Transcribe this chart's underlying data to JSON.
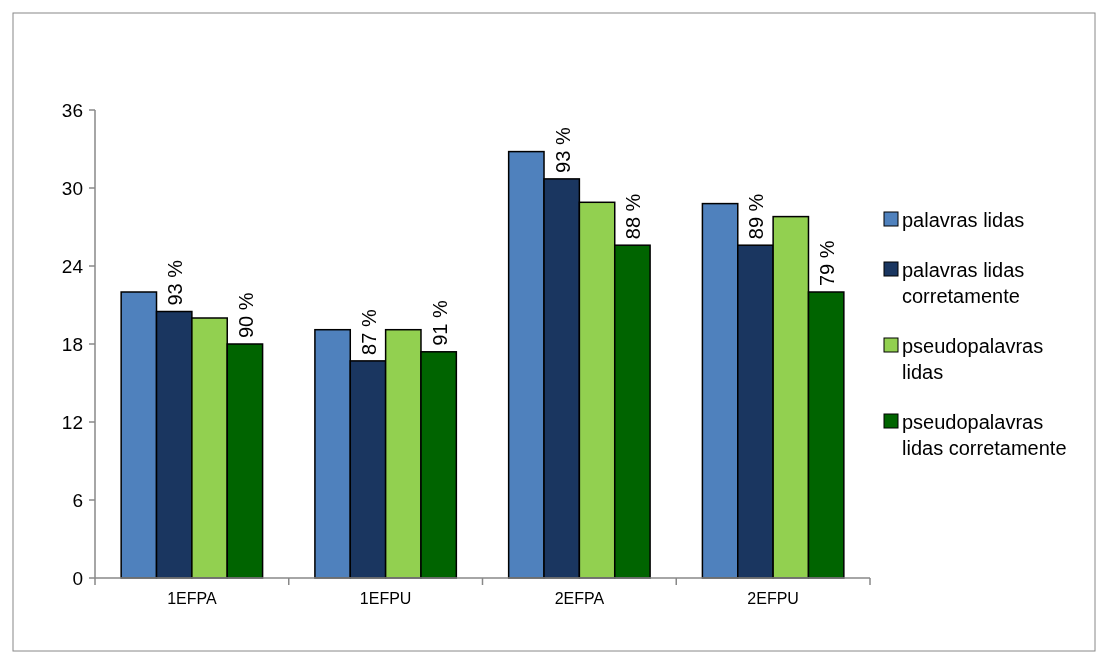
{
  "chart_data": {
    "type": "bar",
    "categories": [
      "1EFPA",
      "1EFPU",
      "2EFPA",
      "2EFPU"
    ],
    "series": [
      {
        "name": "palavras lidas",
        "color": "#4f81bd",
        "values": [
          22.0,
          19.1,
          32.8,
          28.8
        ]
      },
      {
        "name": "palavras lidas corretamente",
        "color": "#1a3660",
        "values": [
          20.5,
          16.7,
          30.7,
          25.6
        ]
      },
      {
        "name": "pseudopalavras lidas",
        "color": "#92d050",
        "values": [
          20.0,
          19.1,
          28.9,
          27.8
        ]
      },
      {
        "name": "pseudopalavras lidas corretamente",
        "color": "#006400",
        "values": [
          18.0,
          17.4,
          25.6,
          22.0
        ]
      }
    ],
    "annotations": [
      {
        "text": "93 %",
        "x": "1EFPA",
        "y": 20.5
      },
      {
        "text": "90 %",
        "x": "1EFPA",
        "y": 18.0
      },
      {
        "text": "87 %",
        "x": "1EFPU",
        "y": 16.7
      },
      {
        "text": "91 %",
        "x": "1EFPU",
        "y": 17.4
      },
      {
        "text": "93 %",
        "x": "2EFPA",
        "y": 30.7
      },
      {
        "text": "88 %",
        "x": "2EFPA",
        "y": 25.6
      },
      {
        "text": "89 %",
        "x": "2EFPU",
        "y": 25.6
      },
      {
        "text": "79 %",
        "x": "2EFPU",
        "y": 22.0
      }
    ],
    "ylim": [
      0,
      36
    ],
    "yticks": [
      0,
      6,
      12,
      18,
      24,
      30,
      36
    ],
    "grid": false,
    "legend": "right"
  }
}
